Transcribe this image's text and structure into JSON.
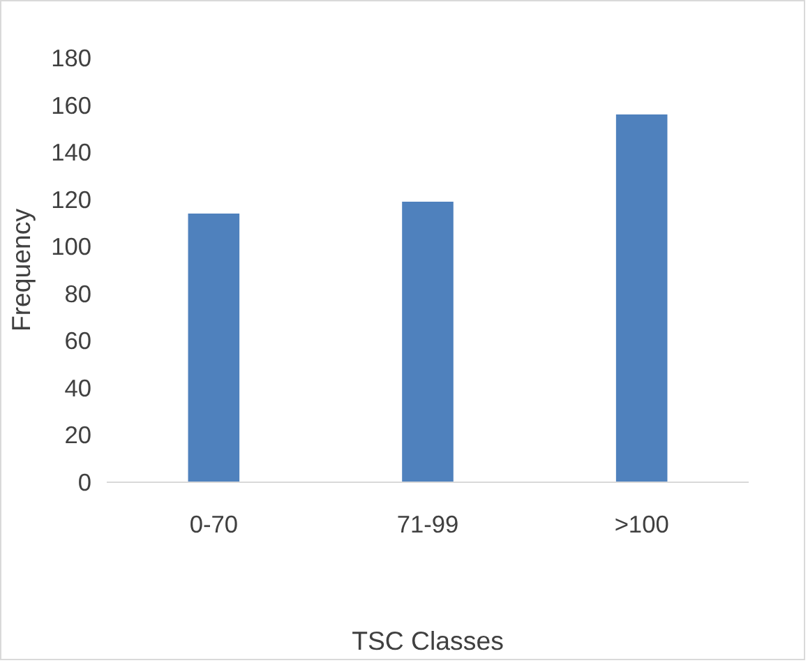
{
  "chart_data": {
    "type": "bar",
    "xlabel": "TSC Classes",
    "ylabel": "Frequency",
    "categories": [
      "0-70",
      "71-99",
      ">100"
    ],
    "values": [
      114,
      119,
      156
    ],
    "color": "#4f81bd",
    "ylim": [
      0,
      180
    ],
    "yticks": [
      0,
      20,
      40,
      60,
      80,
      100,
      120,
      140,
      160,
      180
    ],
    "grid": false
  }
}
